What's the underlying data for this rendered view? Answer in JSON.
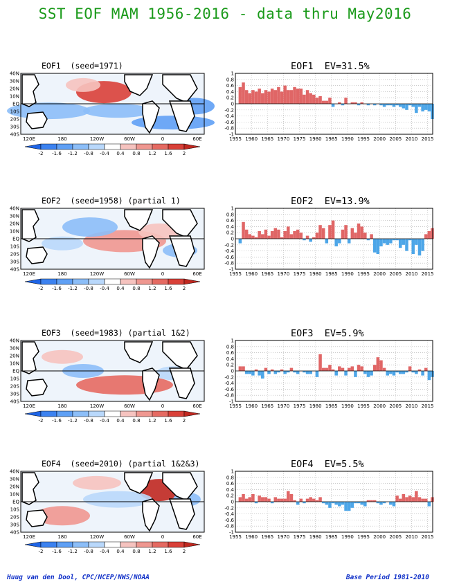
{
  "title": "SST EOF MAM 1956-2016 - data thru May2016",
  "footer": {
    "left": "Huug van den Dool, CPC/NCEP/NWS/NOAA",
    "right": "Base Period 1981-2010"
  },
  "map_axes": {
    "lat_labels": [
      "40N",
      "30N",
      "20N",
      "10N",
      "EQ",
      "10S",
      "20S",
      "30S",
      "40S"
    ],
    "lon_labels": [
      "120E",
      "180",
      "120W",
      "60W",
      "0",
      "60E"
    ]
  },
  "colorbar": {
    "labels": [
      "-2",
      "-1.6",
      "-1.2",
      "-0.8",
      "-0.4",
      "0.4",
      "0.8",
      "1.2",
      "1.6",
      "2"
    ],
    "colors": [
      "#1e64e6",
      "#3c82f0",
      "#5fa0f5",
      "#8cbef8",
      "#b9d8fb",
      "#ffffff",
      "#f6c3bf",
      "#ef9790",
      "#e56a62",
      "#d94038",
      "#c02820"
    ]
  },
  "panels": [
    {
      "map_title": "EOF1  (seed=1971)",
      "ts_title": "EOF1  EV=31.5%"
    },
    {
      "map_title": "EOF2  (seed=1958) (partial 1)",
      "ts_title": "EOF2  EV=13.9%"
    },
    {
      "map_title": "EOF3  (seed=1983) (partial 1&2)",
      "ts_title": "EOF3  EV=5.9%"
    },
    {
      "map_title": "EOF4  (seed=2010) (partial 1&2&3)",
      "ts_title": "EOF4  EV=5.5%"
    }
  ],
  "chart_data": [
    {
      "type": "bar",
      "title": "EOF1  EV=31.5%",
      "ylim": [
        -1,
        1
      ],
      "yticks": [
        "-1",
        "-0.8",
        "-0.6",
        "-0.4",
        "-0.2",
        "0",
        "0.2",
        "0.4",
        "0.6",
        "0.8",
        "1"
      ],
      "xticks": [
        "1955",
        "1960",
        "1965",
        "1970",
        "1975",
        "1980",
        "1985",
        "1990",
        "1995",
        "2000",
        "2005",
        "2010",
        "2015"
      ],
      "grid": true,
      "colors": {
        "positive": "#e06666",
        "negative": "#4da6e8"
      },
      "x": [
        1956,
        1957,
        1958,
        1959,
        1960,
        1961,
        1962,
        1963,
        1964,
        1965,
        1966,
        1967,
        1968,
        1969,
        1970,
        1971,
        1972,
        1973,
        1974,
        1975,
        1976,
        1977,
        1978,
        1979,
        1980,
        1981,
        1982,
        1983,
        1984,
        1985,
        1986,
        1987,
        1988,
        1989,
        1990,
        1991,
        1992,
        1993,
        1994,
        1995,
        1996,
        1997,
        1998,
        1999,
        2000,
        2001,
        2002,
        2003,
        2004,
        2005,
        2006,
        2007,
        2008,
        2009,
        2010,
        2011,
        2012,
        2013,
        2014,
        2015,
        2016
      ],
      "values": [
        0.55,
        0.7,
        0.45,
        0.35,
        0.45,
        0.4,
        0.5,
        0.35,
        0.45,
        0.4,
        0.5,
        0.45,
        0.55,
        0.4,
        0.6,
        0.45,
        0.45,
        0.55,
        0.5,
        0.5,
        0.3,
        0.45,
        0.35,
        0.3,
        0.2,
        0.25,
        0.1,
        0.1,
        0.2,
        -0.1,
        0.0,
        0.05,
        -0.05,
        0.2,
        0.0,
        0.05,
        0.05,
        -0.05,
        0.05,
        0.0,
        -0.05,
        0.0,
        -0.05,
        0.0,
        -0.05,
        -0.1,
        -0.05,
        -0.05,
        -0.1,
        -0.05,
        -0.1,
        -0.15,
        -0.2,
        -0.05,
        -0.1,
        -0.3,
        -0.1,
        -0.25,
        -0.2,
        -0.25,
        -0.5
      ]
    },
    {
      "type": "bar",
      "title": "EOF2  EV=13.9%",
      "ylim": [
        -1,
        1
      ],
      "yticks": [
        "-1",
        "-0.8",
        "-0.6",
        "-0.4",
        "-0.2",
        "0",
        "0.2",
        "0.4",
        "0.6",
        "0.8",
        "1"
      ],
      "xticks": [
        "1955",
        "1960",
        "1965",
        "1970",
        "1975",
        "1980",
        "1985",
        "1990",
        "1995",
        "2000",
        "2005",
        "2010",
        "2015"
      ],
      "grid": true,
      "colors": {
        "positive": "#e06666",
        "negative": "#4da6e8"
      },
      "x": [
        1956,
        1957,
        1958,
        1959,
        1960,
        1961,
        1962,
        1963,
        1964,
        1965,
        1966,
        1967,
        1968,
        1969,
        1970,
        1971,
        1972,
        1973,
        1974,
        1975,
        1976,
        1977,
        1978,
        1979,
        1980,
        1981,
        1982,
        1983,
        1984,
        1985,
        1986,
        1987,
        1988,
        1989,
        1990,
        1991,
        1992,
        1993,
        1994,
        1995,
        1996,
        1997,
        1998,
        1999,
        2000,
        2001,
        2002,
        2003,
        2004,
        2005,
        2006,
        2007,
        2008,
        2009,
        2010,
        2011,
        2012,
        2013,
        2014,
        2015,
        2016
      ],
      "values": [
        -0.15,
        0.55,
        0.3,
        0.15,
        0.1,
        0.05,
        0.25,
        0.15,
        0.3,
        0.1,
        0.25,
        0.35,
        0.3,
        0.05,
        0.25,
        0.4,
        0.15,
        0.25,
        0.3,
        0.2,
        -0.05,
        0.1,
        -0.1,
        0.05,
        0.2,
        0.45,
        0.35,
        -0.15,
        0.45,
        0.6,
        -0.25,
        -0.15,
        0.3,
        0.45,
        -0.15,
        0.35,
        0.2,
        0.5,
        0.4,
        0.2,
        -0.05,
        0.15,
        -0.45,
        -0.5,
        -0.25,
        -0.15,
        -0.2,
        -0.15,
        -0.05,
        -0.05,
        -0.3,
        -0.2,
        -0.4,
        -0.05,
        -0.5,
        -0.2,
        -0.55,
        -0.4,
        0.15,
        0.25,
        0.35
      ]
    },
    {
      "type": "bar",
      "title": "EOF3  EV=5.9%",
      "ylim": [
        -1,
        1
      ],
      "yticks": [
        "-1",
        "-0.8",
        "-0.6",
        "-0.4",
        "-0.2",
        "0",
        "0.2",
        "0.4",
        "0.6",
        "0.8",
        "1"
      ],
      "xticks": [
        "1955",
        "1960",
        "1965",
        "1970",
        "1975",
        "1980",
        "1985",
        "1990",
        "1995",
        "2000",
        "2005",
        "2010",
        "2015"
      ],
      "grid": true,
      "colors": {
        "positive": "#e06666",
        "negative": "#4da6e8"
      },
      "x": [
        1956,
        1957,
        1958,
        1959,
        1960,
        1961,
        1962,
        1963,
        1964,
        1965,
        1966,
        1967,
        1968,
        1969,
        1970,
        1971,
        1972,
        1973,
        1974,
        1975,
        1976,
        1977,
        1978,
        1979,
        1980,
        1981,
        1982,
        1983,
        1984,
        1985,
        1986,
        1987,
        1988,
        1989,
        1990,
        1991,
        1992,
        1993,
        1994,
        1995,
        1996,
        1997,
        1998,
        1999,
        2000,
        2001,
        2002,
        2003,
        2004,
        2005,
        2006,
        2007,
        2008,
        2009,
        2010,
        2011,
        2012,
        2013,
        2014,
        2015,
        2016
      ],
      "values": [
        0.15,
        0.15,
        -0.1,
        -0.1,
        -0.15,
        0.05,
        -0.15,
        -0.25,
        0.1,
        -0.1,
        0.05,
        -0.1,
        -0.05,
        0.05,
        -0.1,
        -0.05,
        0.1,
        -0.05,
        -0.1,
        0.0,
        -0.05,
        -0.1,
        -0.1,
        0.0,
        -0.2,
        0.55,
        0.1,
        0.1,
        0.2,
        0.05,
        -0.15,
        0.15,
        0.1,
        -0.15,
        0.1,
        0.15,
        -0.2,
        0.2,
        0.15,
        -0.1,
        -0.2,
        -0.15,
        0.2,
        0.45,
        0.35,
        0.1,
        -0.15,
        -0.1,
        -0.15,
        -0.05,
        -0.1,
        -0.1,
        -0.05,
        0.15,
        -0.05,
        -0.1,
        0.05,
        -0.15,
        0.1,
        -0.3,
        -0.2
      ]
    },
    {
      "type": "bar",
      "title": "EOF4  EV=5.5%",
      "ylim": [
        -1,
        1
      ],
      "yticks": [
        "-1",
        "-0.8",
        "-0.6",
        "-0.4",
        "-0.2",
        "0",
        "0.2",
        "0.4",
        "0.6",
        "0.8",
        "1"
      ],
      "xticks": [
        "1955",
        "1960",
        "1965",
        "1970",
        "1975",
        "1980",
        "1985",
        "1990",
        "1995",
        "2000",
        "2005",
        "2010",
        "2015"
      ],
      "grid": true,
      "colors": {
        "positive": "#e06666",
        "negative": "#4da6e8"
      },
      "x": [
        1956,
        1957,
        1958,
        1959,
        1960,
        1961,
        1962,
        1963,
        1964,
        1965,
        1966,
        1967,
        1968,
        1969,
        1970,
        1971,
        1972,
        1973,
        1974,
        1975,
        1976,
        1977,
        1978,
        1979,
        1980,
        1981,
        1982,
        1983,
        1984,
        1985,
        1986,
        1987,
        1988,
        1989,
        1990,
        1991,
        1992,
        1993,
        1994,
        1995,
        1996,
        1997,
        1998,
        1999,
        2000,
        2001,
        2002,
        2003,
        2004,
        2005,
        2006,
        2007,
        2008,
        2009,
        2010,
        2011,
        2012,
        2013,
        2014,
        2015,
        2016
      ],
      "values": [
        0.15,
        0.25,
        0.1,
        0.15,
        0.25,
        -0.05,
        0.2,
        0.15,
        0.15,
        0.1,
        -0.05,
        0.15,
        0.1,
        0.1,
        0.1,
        0.35,
        0.25,
        0.05,
        -0.1,
        0.1,
        -0.05,
        0.1,
        0.15,
        0.1,
        0.05,
        0.15,
        -0.05,
        -0.1,
        -0.2,
        -0.05,
        -0.1,
        -0.15,
        -0.1,
        -0.3,
        -0.3,
        -0.2,
        -0.05,
        -0.05,
        -0.1,
        -0.15,
        0.05,
        0.05,
        0.05,
        -0.05,
        -0.1,
        -0.05,
        0.0,
        -0.1,
        -0.15,
        0.2,
        0.1,
        0.25,
        0.15,
        0.2,
        0.15,
        0.35,
        0.15,
        0.1,
        0.1,
        -0.15,
        0.15
      ]
    }
  ]
}
